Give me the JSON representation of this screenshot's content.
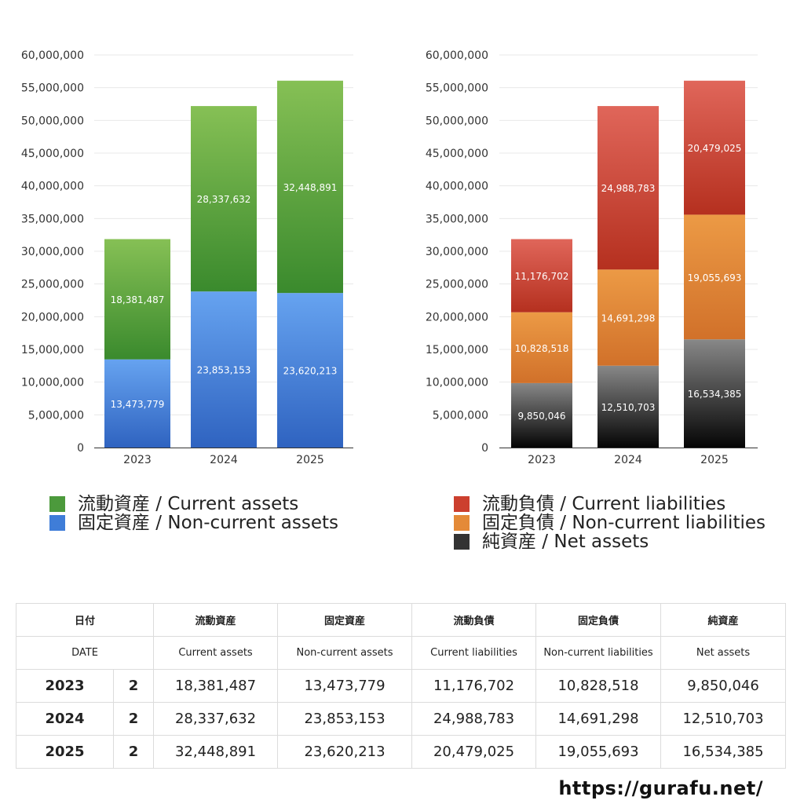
{
  "chart_data": [
    {
      "type": "bar",
      "stacked": true,
      "title": "",
      "xlabel": "",
      "ylabel": "",
      "ylim": [
        0,
        60000000
      ],
      "yticks": [
        "0",
        "5,000,000",
        "10,000,000",
        "15,000,000",
        "20,000,000",
        "25,000,000",
        "30,000,000",
        "35,000,000",
        "40,000,000",
        "45,000,000",
        "50,000,000",
        "55,000,000",
        "60,000,000"
      ],
      "categories": [
        "2023",
        "2024",
        "2025"
      ],
      "series": [
        {
          "name": "固定資産 / Non-current assets",
          "values": [
            13473779,
            23853153,
            23620213
          ],
          "labels": [
            "13,473,779",
            "23,853,153",
            "23,620,213"
          ],
          "color_top": "#66a3f0",
          "color_bottom": "#2f63c0"
        },
        {
          "name": "流動資産 / Current assets",
          "values": [
            18381487,
            28337632,
            32448891
          ],
          "labels": [
            "18,381,487",
            "28,337,632",
            "32,448,891"
          ],
          "color_top": "#86c055",
          "color_bottom": "#3a8a2d"
        }
      ],
      "legend": [
        "流動資産 / Current assets",
        "固定資産 / Non-current assets"
      ]
    },
    {
      "type": "bar",
      "stacked": true,
      "title": "",
      "xlabel": "",
      "ylabel": "",
      "ylim": [
        0,
        60000000
      ],
      "yticks": [
        "0",
        "5,000,000",
        "10,000,000",
        "15,000,000",
        "20,000,000",
        "25,000,000",
        "30,000,000",
        "35,000,000",
        "40,000,000",
        "45,000,000",
        "50,000,000",
        "55,000,000",
        "60,000,000"
      ],
      "categories": [
        "2023",
        "2024",
        "2025"
      ],
      "series": [
        {
          "name": "純資産 / Net assets",
          "values": [
            9850046,
            12510703,
            16534385
          ],
          "labels": [
            "9,850,046",
            "12,510,703",
            "16,534,385"
          ],
          "color_top": "#888888",
          "color_bottom": "#050505"
        },
        {
          "name": "固定負債 / Non-current liabilities",
          "values": [
            10828518,
            14691298,
            19055693
          ],
          "labels": [
            "10,828,518",
            "14,691,298",
            "19,055,693"
          ],
          "color_top": "#ec9a45",
          "color_bottom": "#d1712a"
        },
        {
          "name": "流動負債 / Current liabilities",
          "values": [
            11176702,
            24988783,
            20479025
          ],
          "labels": [
            "11,176,702",
            "24,988,783",
            "20,479,025"
          ],
          "color_top": "#e0665a",
          "color_bottom": "#b5301f"
        }
      ],
      "legend": [
        "流動負債 / Current liabilities",
        "固定負債 / Non-current liabilities",
        "純資産 / Net assets"
      ]
    }
  ],
  "legend_left": [
    {
      "label": "流動資産 / Current assets",
      "color": "#4c9a3c"
    },
    {
      "label": "固定資産 / Non-current assets",
      "color": "#3f7dd8"
    }
  ],
  "legend_right": [
    {
      "label": "流動負債 / Current liabilities",
      "color": "#cc3f2e"
    },
    {
      "label": "固定負債 / Non-current liabilities",
      "color": "#e48a38"
    },
    {
      "label": "純資産 / Net assets",
      "color": "#333333"
    }
  ],
  "table": {
    "header_jp": [
      "日付",
      "",
      "流動資産",
      "固定資産",
      "流動負債",
      "固定負債",
      "純資産"
    ],
    "header_en": [
      "DATE",
      "",
      "Current assets",
      "Non-current assets",
      "Current liabilities",
      "Non-current liabilities",
      "Net assets"
    ],
    "rows": [
      [
        "2023",
        "2",
        "18,381,487",
        "13,473,779",
        "11,176,702",
        "10,828,518",
        "9,850,046"
      ],
      [
        "2024",
        "2",
        "28,337,632",
        "23,853,153",
        "24,988,783",
        "14,691,298",
        "12,510,703"
      ],
      [
        "2025",
        "2",
        "32,448,891",
        "23,620,213",
        "20,479,025",
        "19,055,693",
        "16,534,385"
      ]
    ]
  },
  "footer": {
    "site": "https://gurafu.net/"
  }
}
